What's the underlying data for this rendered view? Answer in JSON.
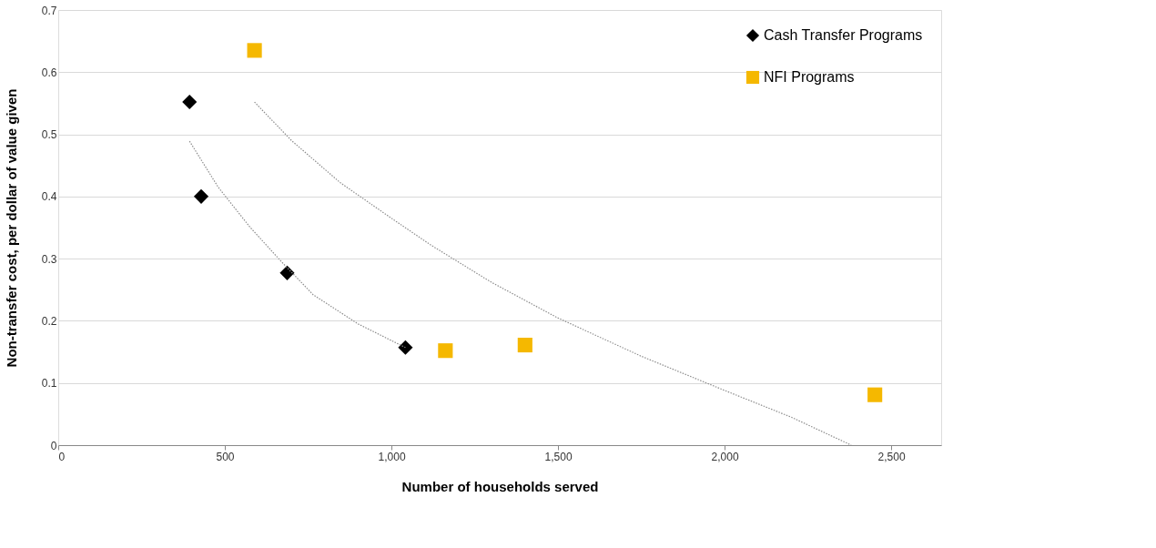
{
  "chart_data": {
    "type": "scatter",
    "xlabel": "Number of households served",
    "ylabel": "Non-transfer cost, per dollar of value given",
    "xlim": [
      0,
      2650
    ],
    "xticks": [
      0,
      500,
      {
        "value": 1000,
        "label": "1,000"
      },
      {
        "value": 1500,
        "label": "1,500"
      },
      {
        "value": 2000,
        "label": "2,000"
      },
      {
        "value": 2500,
        "label": "2,500"
      }
    ],
    "ylim": [
      0,
      0.7
    ],
    "yticks": [
      0,
      0.1,
      0.2,
      0.3,
      0.4,
      0.5,
      0.6,
      0.7
    ],
    "grid": "y",
    "legend": "top right",
    "series": [
      {
        "name": "Cash Transfer Programs",
        "color": "#000000",
        "marker": "diamond",
        "x": [
          394,
          429,
          687,
          1042
        ],
        "values": [
          0.552,
          0.4,
          0.277,
          0.157
        ]
      },
      {
        "name": "NFI Programs",
        "color": "#f5b800",
        "marker": "square",
        "x": [
          589,
          1162,
          1401,
          2451
        ],
        "values": [
          0.635,
          0.152,
          0.161,
          0.081
        ]
      },
      {
        "type": "line",
        "color": "#8c8c8c",
        "line_style": "dotted",
        "x": [
          394,
          480,
          575,
          670,
          765,
          900,
          1042
        ],
        "values": [
          0.489,
          0.415,
          0.351,
          0.295,
          0.242,
          0.195,
          0.157
        ]
      },
      {
        "type": "line",
        "color": "#8c8c8c",
        "line_style": "dotted",
        "x": [
          589,
          700,
          847,
          1000,
          1118,
          1300,
          1498,
          1750,
          2000,
          2200,
          2380
        ],
        "values": [
          0.552,
          0.49,
          0.422,
          0.365,
          0.322,
          0.262,
          0.205,
          0.143,
          0.088,
          0.045,
          0.0
        ]
      }
    ]
  }
}
